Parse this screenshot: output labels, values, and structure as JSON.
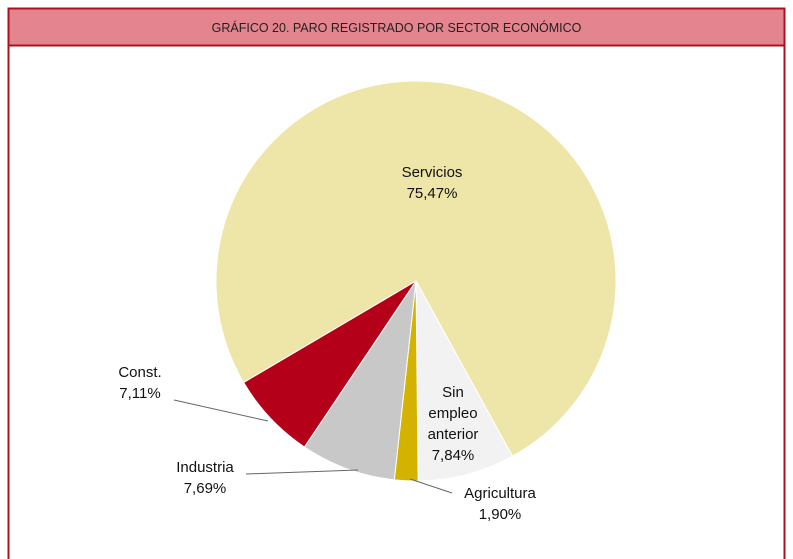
{
  "chart_data": {
    "type": "pie",
    "title": "GRÁFICO 20. PARO REGISTRADO POR SECTOR ECONÓMICO",
    "categories": [
      "Servicios",
      "Sin empleo anterior",
      "Agricultura",
      "Industria",
      "Const."
    ],
    "values": [
      75.47,
      7.84,
      1.9,
      7.69,
      7.11
    ],
    "value_labels": [
      "75,47%",
      "7,84%",
      "1,90%",
      "7,69%",
      "7,11%"
    ],
    "colors": [
      "#ede6a8",
      "#f2f2f2",
      "#d4b300",
      "#c8c8c8",
      "#b5001a"
    ]
  }
}
